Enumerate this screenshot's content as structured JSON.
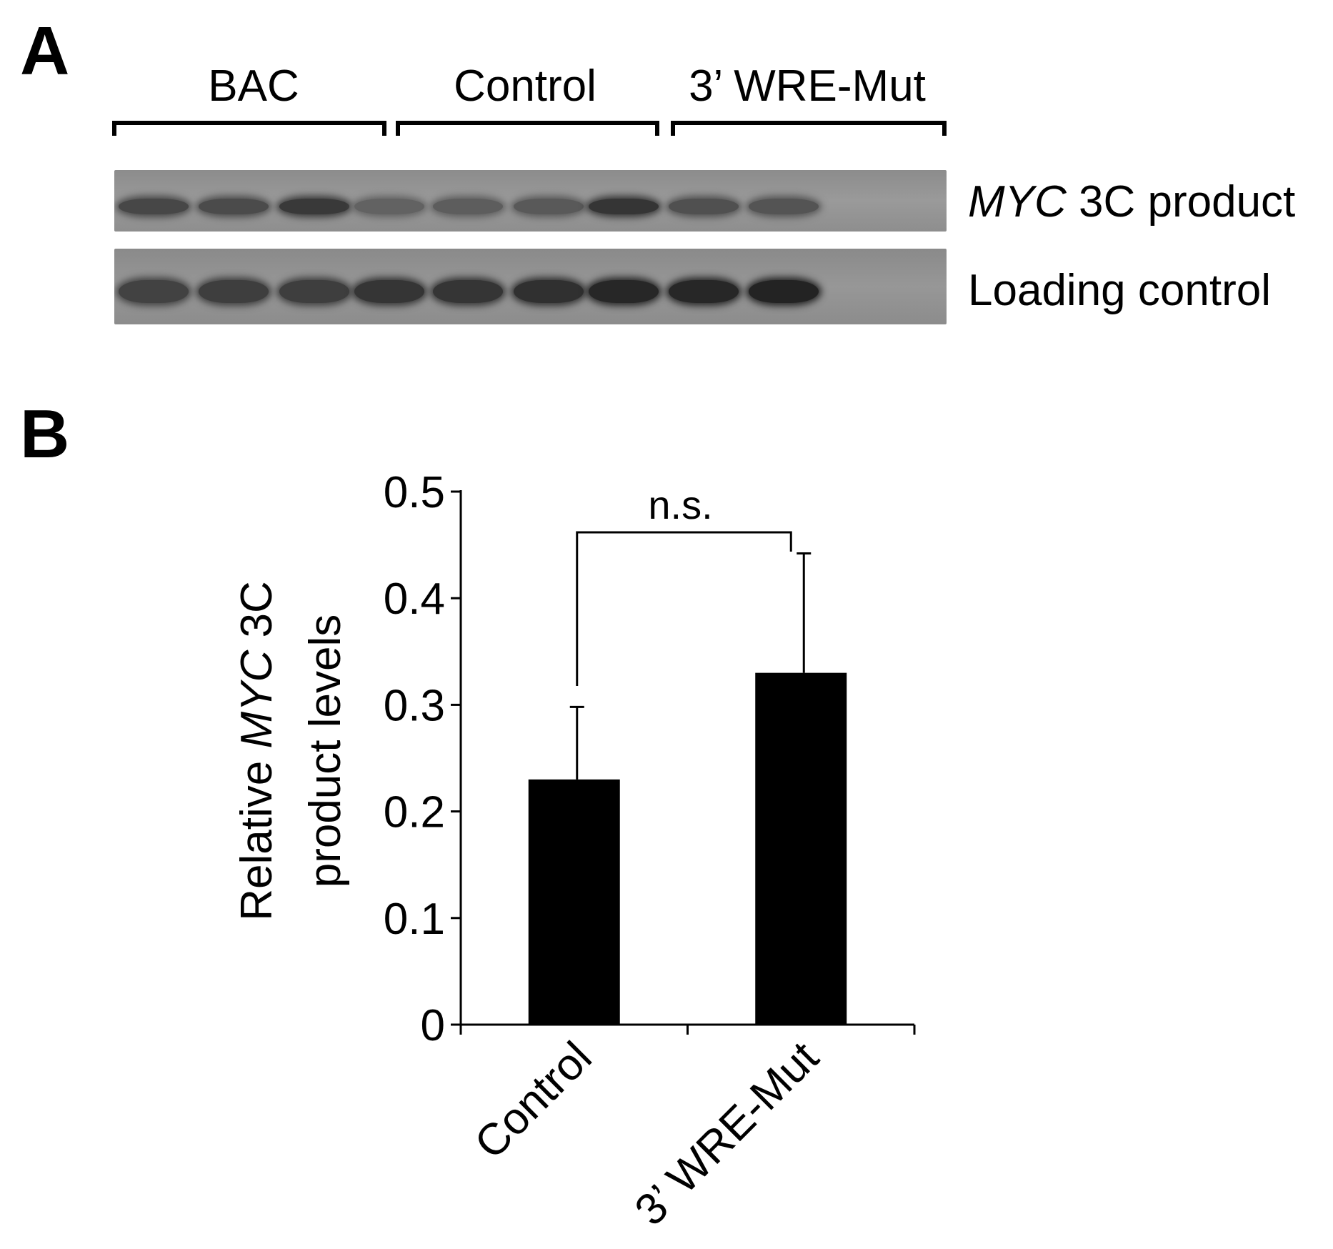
{
  "panel_a": {
    "letter": "A",
    "groups": [
      "BAC",
      "Control",
      "3’ WRE-Mut"
    ],
    "row_labels": {
      "top_gene": "MYC",
      "top_rest": " 3C product",
      "bottom": "Loading control"
    },
    "band_intensity_top": [
      0.55,
      0.5,
      0.7,
      0.25,
      0.3,
      0.35,
      0.75,
      0.45,
      0.4
    ],
    "band_intensity_bottom": [
      0.6,
      0.65,
      0.65,
      0.75,
      0.75,
      0.8,
      0.9,
      0.9,
      0.95
    ]
  },
  "panel_b": {
    "letter": "B"
  },
  "chart_data": {
    "type": "bar",
    "categories": [
      "Control",
      "3’ WRE-Mut"
    ],
    "values": [
      0.23,
      0.33
    ],
    "errors": [
      0.068,
      0.112
    ],
    "ylabel_line1_pre": "Relative ",
    "ylabel_line1_gene": "MYC",
    "ylabel_line1_post": " 3C",
    "ylabel_line2": "product levels",
    "ylim": [
      0,
      0.5
    ],
    "yticks": [
      "0",
      "0.1",
      "0.2",
      "0.3",
      "0.4",
      "0.5"
    ],
    "significance": "n.s.",
    "bar_color": "#000000"
  }
}
